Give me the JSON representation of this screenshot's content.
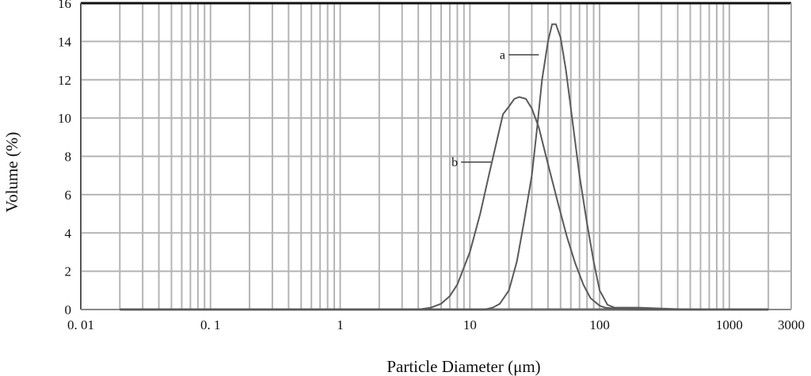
{
  "chart_data": {
    "type": "line",
    "xscale": "log",
    "xlim": [
      0.01,
      3000
    ],
    "ylim": [
      0,
      16
    ],
    "grid": true,
    "xlabel": "Particle Diameter (μm)",
    "ylabel": "Volume (%)",
    "x_tick_labels": [
      {
        "value": 0.01,
        "label": "0. 01"
      },
      {
        "value": 0.1,
        "label": "0. 1"
      },
      {
        "value": 1,
        "label": "1"
      },
      {
        "value": 10,
        "label": "10"
      },
      {
        "value": 100,
        "label": "100"
      },
      {
        "value": 1000,
        "label": "1000"
      },
      {
        "value": 3000,
        "label": "3000"
      }
    ],
    "y_tick_labels": [
      {
        "value": 0,
        "label": "0"
      },
      {
        "value": 2,
        "label": "2"
      },
      {
        "value": 4,
        "label": "4"
      },
      {
        "value": 6,
        "label": "6"
      },
      {
        "value": 8,
        "label": "8"
      },
      {
        "value": 10,
        "label": "10"
      },
      {
        "value": 12,
        "label": "12"
      },
      {
        "value": 14,
        "label": "14"
      },
      {
        "value": 16,
        "label": "16"
      }
    ],
    "series": [
      {
        "name": "a",
        "x": [
          0.02,
          1,
          10,
          13,
          15,
          17,
          20,
          23,
          26,
          30,
          33,
          36,
          40,
          43,
          46,
          50,
          55,
          60,
          70,
          80,
          90,
          100,
          115,
          130,
          200,
          300,
          500,
          1000,
          2000
        ],
        "y": [
          0,
          0,
          0,
          0,
          0.1,
          0.3,
          1.0,
          2.5,
          4.5,
          7.0,
          9.5,
          12.0,
          14.0,
          14.9,
          14.9,
          14.2,
          12.5,
          10.5,
          7.0,
          4.5,
          2.5,
          1.0,
          0.25,
          0.1,
          0.1,
          0.05,
          0,
          0,
          0
        ]
      },
      {
        "name": "b",
        "x": [
          0.02,
          1,
          4,
          5,
          6,
          7,
          8,
          10,
          12,
          14,
          16,
          18,
          20,
          22,
          24,
          27,
          30,
          34,
          40,
          48,
          56,
          65,
          75,
          85,
          100,
          110,
          130,
          200,
          500,
          1000,
          2000
        ],
        "y": [
          0,
          0,
          0,
          0.1,
          0.3,
          0.7,
          1.3,
          3.0,
          5.0,
          7.0,
          8.7,
          10.2,
          10.6,
          11.0,
          11.1,
          11.0,
          10.5,
          9.5,
          7.6,
          5.5,
          3.8,
          2.4,
          1.3,
          0.6,
          0.2,
          0.1,
          0.05,
          0,
          0,
          0,
          0
        ]
      }
    ],
    "annotations": [
      {
        "text": "a",
        "x": 35,
        "y": 13.3
      },
      {
        "text": "b",
        "x": 15,
        "y": 7.7
      }
    ]
  }
}
